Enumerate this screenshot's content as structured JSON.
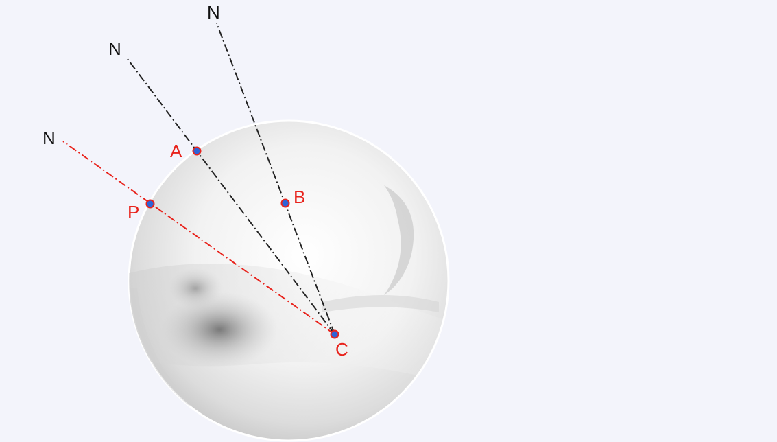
{
  "diagram": {
    "colors": {
      "background": "#f3f4fb",
      "pole_line": "#222222",
      "highlight_line": "#e8231c",
      "point_fill": "#2d64d8",
      "point_stroke": "#e8231c",
      "point_label": "#e8231c",
      "pole_label": "#111111"
    },
    "labels": {
      "n_top": "N",
      "n_upper_left": "N",
      "n_left": "N",
      "point_a": "A",
      "point_b": "B",
      "point_p": "P",
      "point_c": "C"
    }
  }
}
